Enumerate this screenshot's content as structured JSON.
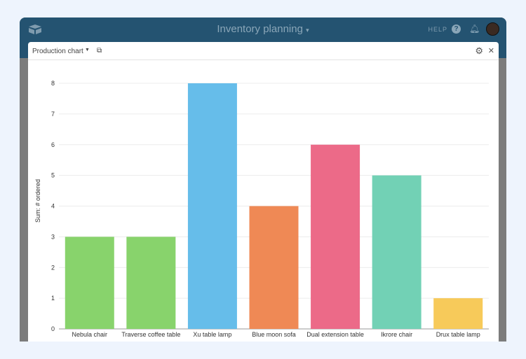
{
  "app": {
    "title": "Inventory planning",
    "help": "HELP"
  },
  "modal": {
    "title": "Production chart"
  },
  "chart_data": {
    "type": "bar",
    "title": "Production chart",
    "xlabel": "",
    "ylabel": "Sum: # ordered",
    "ylim": [
      0,
      8
    ],
    "yticks": [
      0,
      1,
      2,
      3,
      4,
      5,
      6,
      7,
      8
    ],
    "grid": true,
    "categories": [
      "Nebula chair",
      "Traverse coffee table",
      "Xu table lamp",
      "Blue moon sofa",
      "Dual extension table",
      "Ikrore chair",
      "Drux table lamp"
    ],
    "values": [
      3,
      3,
      8,
      4,
      6,
      5,
      1
    ],
    "colors": [
      "#88d36c",
      "#88d36c",
      "#66bdea",
      "#ef8955",
      "#ec6a88",
      "#72d1b5",
      "#f7ca5a"
    ]
  }
}
